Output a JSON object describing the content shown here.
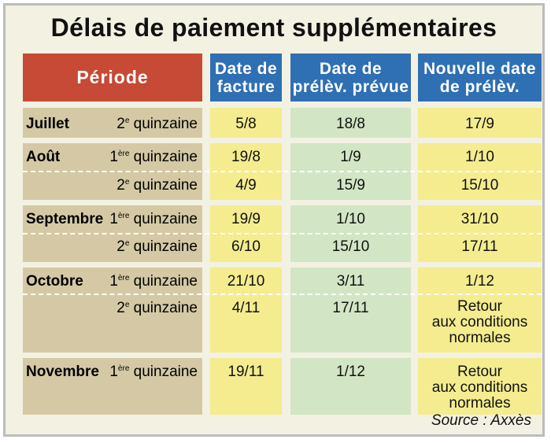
{
  "title": "Délais de paiement supplémentaires",
  "headers": {
    "periode": "Période",
    "date_facture": [
      "Date de",
      "facture"
    ],
    "date_prelev_prevue": [
      "Date de",
      "prélèv. prévue"
    ],
    "nouvelle_date": [
      "Nouvelle date",
      "de prélèv."
    ]
  },
  "quinzaine_labels": {
    "first_prefix": "1",
    "first_sup": "ère",
    "second_prefix": "2",
    "second_sup": "e",
    "suffix": " quinzaine"
  },
  "rows": [
    {
      "month": "Juillet",
      "quinzaine": "2",
      "facture": "5/8",
      "prevue": "18/8",
      "nouvelle": "17/9"
    },
    {
      "month": "Août",
      "quinzaine": "1",
      "facture": "19/8",
      "prevue": "1/9",
      "nouvelle": "1/10"
    },
    {
      "month": "",
      "quinzaine": "2",
      "facture": "4/9",
      "prevue": "15/9",
      "nouvelle": "15/10"
    },
    {
      "month": "Septembre",
      "quinzaine": "1",
      "facture": "19/9",
      "prevue": "1/10",
      "nouvelle": "31/10"
    },
    {
      "month": "",
      "quinzaine": "2",
      "facture": "6/10",
      "prevue": "15/10",
      "nouvelle": "17/11"
    },
    {
      "month": "Octobre",
      "quinzaine": "1",
      "facture": "21/10",
      "prevue": "3/11",
      "nouvelle": "1/12"
    },
    {
      "month": "",
      "quinzaine": "2",
      "facture": "4/11",
      "prevue": "17/11",
      "nouvelle": [
        "Retour",
        "aux conditions",
        "normales"
      ]
    },
    {
      "month": "Novembre",
      "quinzaine": "1",
      "facture": "19/11",
      "prevue": "1/12",
      "nouvelle": [
        "Retour",
        "aux conditions",
        "normales"
      ]
    }
  ],
  "source": "Source : Axxès",
  "colors": {
    "period_header": "#c64a35",
    "column_header": "#2f6fb3",
    "period_cells": "#d4c9a4",
    "yellow_cells": "#f4ec8f",
    "green_cells": "#d2e6c5",
    "background": "#f3f1e2"
  }
}
